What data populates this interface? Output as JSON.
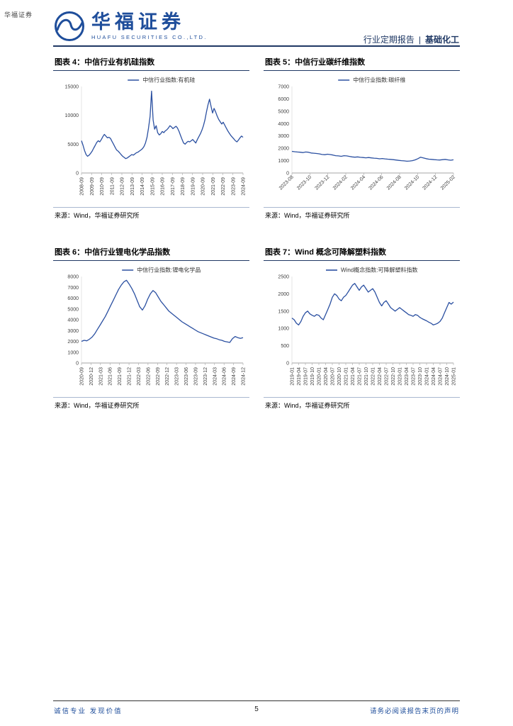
{
  "page": {
    "watermark": "华福证券"
  },
  "header": {
    "brand_cn": "华福证券",
    "brand_en": "HUAFU SECURITIES CO.,LTD.",
    "report_type": "行业定期报告",
    "separator": "|",
    "industry": "基础化工"
  },
  "footer": {
    "left": "诚信专业  发现价值",
    "page": "5",
    "right": "请务必阅读报告末页的声明"
  },
  "colors": {
    "accent_blue": "#1f4e9b",
    "rule_blue": "#1f3864",
    "series_line": "#2b50a1"
  },
  "chart_data": [
    {
      "type": "line",
      "title": "图表 4：中信行业有机硅指数",
      "legend": "中信行业指数:有机硅",
      "source": "来源：Wind，华福证券研究所",
      "line_color": "#2b50a1",
      "grid": false,
      "legend_position": "top",
      "x_label_rotation": -90,
      "ylim": [
        0,
        15000
      ],
      "y_ticks": [
        0,
        5000,
        10000,
        15000
      ],
      "x_tick_labels": [
        "2008-09",
        "2009-09",
        "2010-09",
        "2011-09",
        "2012-09",
        "2013-09",
        "2014-09",
        "2015-09",
        "2016-09",
        "2017-09",
        "2018-09",
        "2019-09",
        "2020-09",
        "2021-09",
        "2022-09",
        "2023-09",
        "2024-09"
      ],
      "series": [
        {
          "name": "中信行业指数:有机硅",
          "values": [
            5600,
            4800,
            3900,
            3200,
            2900,
            3100,
            3400,
            3800,
            4300,
            4800,
            5300,
            5600,
            5400,
            5800,
            6300,
            6700,
            6400,
            6100,
            6200,
            6000,
            5500,
            5000,
            4500,
            4000,
            3800,
            3500,
            3200,
            2900,
            2700,
            2500,
            2600,
            2800,
            3000,
            3200,
            3100,
            3300,
            3500,
            3600,
            3800,
            4000,
            4200,
            4600,
            5200,
            6200,
            7800,
            9800,
            14200,
            9200,
            7600,
            8200,
            7000,
            6600,
            6800,
            7200,
            7000,
            7300,
            7500,
            7800,
            8200,
            8000,
            7700,
            7900,
            8100,
            7800,
            7200,
            6500,
            5800,
            5200,
            5000,
            5300,
            5500,
            5400,
            5600,
            5800,
            5500,
            5200,
            5800,
            6300,
            6800,
            7400,
            8200,
            9200,
            10600,
            11800,
            12800,
            11600,
            10400,
            11200,
            10600,
            9900,
            9300,
            8900,
            8500,
            8800,
            8300,
            7800,
            7300,
            6900,
            6500,
            6200,
            5900,
            5600,
            5400,
            5700,
            6100,
            6400,
            6200
          ]
        }
      ]
    },
    {
      "type": "line",
      "title": "图表 5：中信行业碳纤维指数",
      "legend": "中信行业指数:碳纤维",
      "source": "来源：Wind，华福证券研究所",
      "line_color": "#2b50a1",
      "grid": false,
      "legend_position": "top",
      "x_label_rotation": -45,
      "ylim": [
        0,
        7000
      ],
      "y_ticks": [
        0,
        1000,
        2000,
        3000,
        4000,
        5000,
        6000,
        7000
      ],
      "x_tick_labels": [
        "2023-08",
        "2023-10",
        "2023-12",
        "2024-02",
        "2024-04",
        "2024-06",
        "2024-08",
        "2024-10",
        "2024-12",
        "2025-02"
      ],
      "series": [
        {
          "name": "中信行业指数:碳纤维",
          "values": [
            1750,
            1720,
            1700,
            1680,
            1650,
            1700,
            1680,
            1620,
            1600,
            1580,
            1550,
            1500,
            1480,
            1520,
            1490,
            1450,
            1400,
            1380,
            1350,
            1400,
            1380,
            1340,
            1300,
            1280,
            1300,
            1270,
            1250,
            1230,
            1250,
            1220,
            1200,
            1180,
            1150,
            1170,
            1140,
            1120,
            1100,
            1080,
            1050,
            1020,
            1000,
            980,
            950,
            970,
            1000,
            1060,
            1160,
            1280,
            1220,
            1160,
            1120,
            1100,
            1080,
            1060,
            1050,
            1080,
            1100,
            1060,
            1030,
            1070
          ]
        }
      ]
    },
    {
      "type": "line",
      "title": "图表 6：中信行业锂电化学品指数",
      "legend": "中信行业指数:锂电化学品",
      "source": "来源：Wind，华福证券研究所",
      "line_color": "#2b50a1",
      "grid": false,
      "legend_position": "top",
      "x_label_rotation": -90,
      "ylim": [
        0,
        8000
      ],
      "y_ticks": [
        0,
        1000,
        2000,
        3000,
        4000,
        5000,
        6000,
        7000,
        8000
      ],
      "x_tick_labels": [
        "2020-09",
        "2020-12",
        "2021-03",
        "2021-06",
        "2021-09",
        "2021-12",
        "2022-03",
        "2022-06",
        "2022-09",
        "2022-12",
        "2023-03",
        "2023-06",
        "2023-09",
        "2023-12",
        "2024-03",
        "2024-06",
        "2024-09",
        "2024-12"
      ],
      "series": [
        {
          "name": "中信行业指数:锂电化学品",
          "values": [
            2000,
            2100,
            2050,
            2200,
            2400,
            2700,
            3100,
            3500,
            3900,
            4300,
            4800,
            5300,
            5800,
            6300,
            6800,
            7200,
            7500,
            7650,
            7300,
            6900,
            6400,
            5800,
            5200,
            4900,
            5300,
            5900,
            6400,
            6700,
            6500,
            6100,
            5700,
            5400,
            5100,
            4800,
            4600,
            4400,
            4200,
            4000,
            3800,
            3650,
            3500,
            3350,
            3200,
            3050,
            2900,
            2800,
            2700,
            2600,
            2500,
            2400,
            2300,
            2250,
            2150,
            2100,
            2000,
            1950,
            1900,
            2250,
            2450,
            2350,
            2280,
            2350
          ]
        }
      ]
    },
    {
      "type": "line",
      "title": "图表 7：Wind 概念可降解塑料指数",
      "legend": "Wind概念指数:可降解塑料指数",
      "source": "来源：Wind，华福证券研究所",
      "line_color": "#2b50a1",
      "grid": false,
      "legend_position": "top",
      "x_label_rotation": -90,
      "ylim": [
        0,
        2500
      ],
      "y_ticks": [
        0,
        500,
        1000,
        1500,
        2000,
        2500
      ],
      "x_tick_labels": [
        "2019-01",
        "2019-04",
        "2019-07",
        "2019-10",
        "2020-01",
        "2020-04",
        "2020-07",
        "2020-10",
        "2021-01",
        "2021-04",
        "2021-07",
        "2021-10",
        "2022-01",
        "2022-04",
        "2022-07",
        "2022-10",
        "2023-01",
        "2023-04",
        "2023-07",
        "2023-10",
        "2024-01",
        "2024-04",
        "2024-07",
        "2024-10",
        "2025-01"
      ],
      "series": [
        {
          "name": "Wind概念指数:可降解塑料指数",
          "values": [
            1300,
            1250,
            1150,
            1100,
            1200,
            1350,
            1450,
            1500,
            1420,
            1380,
            1350,
            1400,
            1380,
            1300,
            1250,
            1400,
            1550,
            1700,
            1900,
            2000,
            1950,
            1850,
            1800,
            1900,
            1950,
            2050,
            2150,
            2250,
            2300,
            2200,
            2100,
            2200,
            2250,
            2150,
            2050,
            2100,
            2150,
            2050,
            1900,
            1750,
            1650,
            1750,
            1800,
            1700,
            1600,
            1550,
            1500,
            1550,
            1600,
            1550,
            1500,
            1450,
            1400,
            1380,
            1350,
            1400,
            1380,
            1320,
            1280,
            1250,
            1220,
            1180,
            1150,
            1100,
            1120,
            1150,
            1200,
            1300,
            1450,
            1600,
            1750,
            1700,
            1760
          ]
        }
      ]
    }
  ]
}
